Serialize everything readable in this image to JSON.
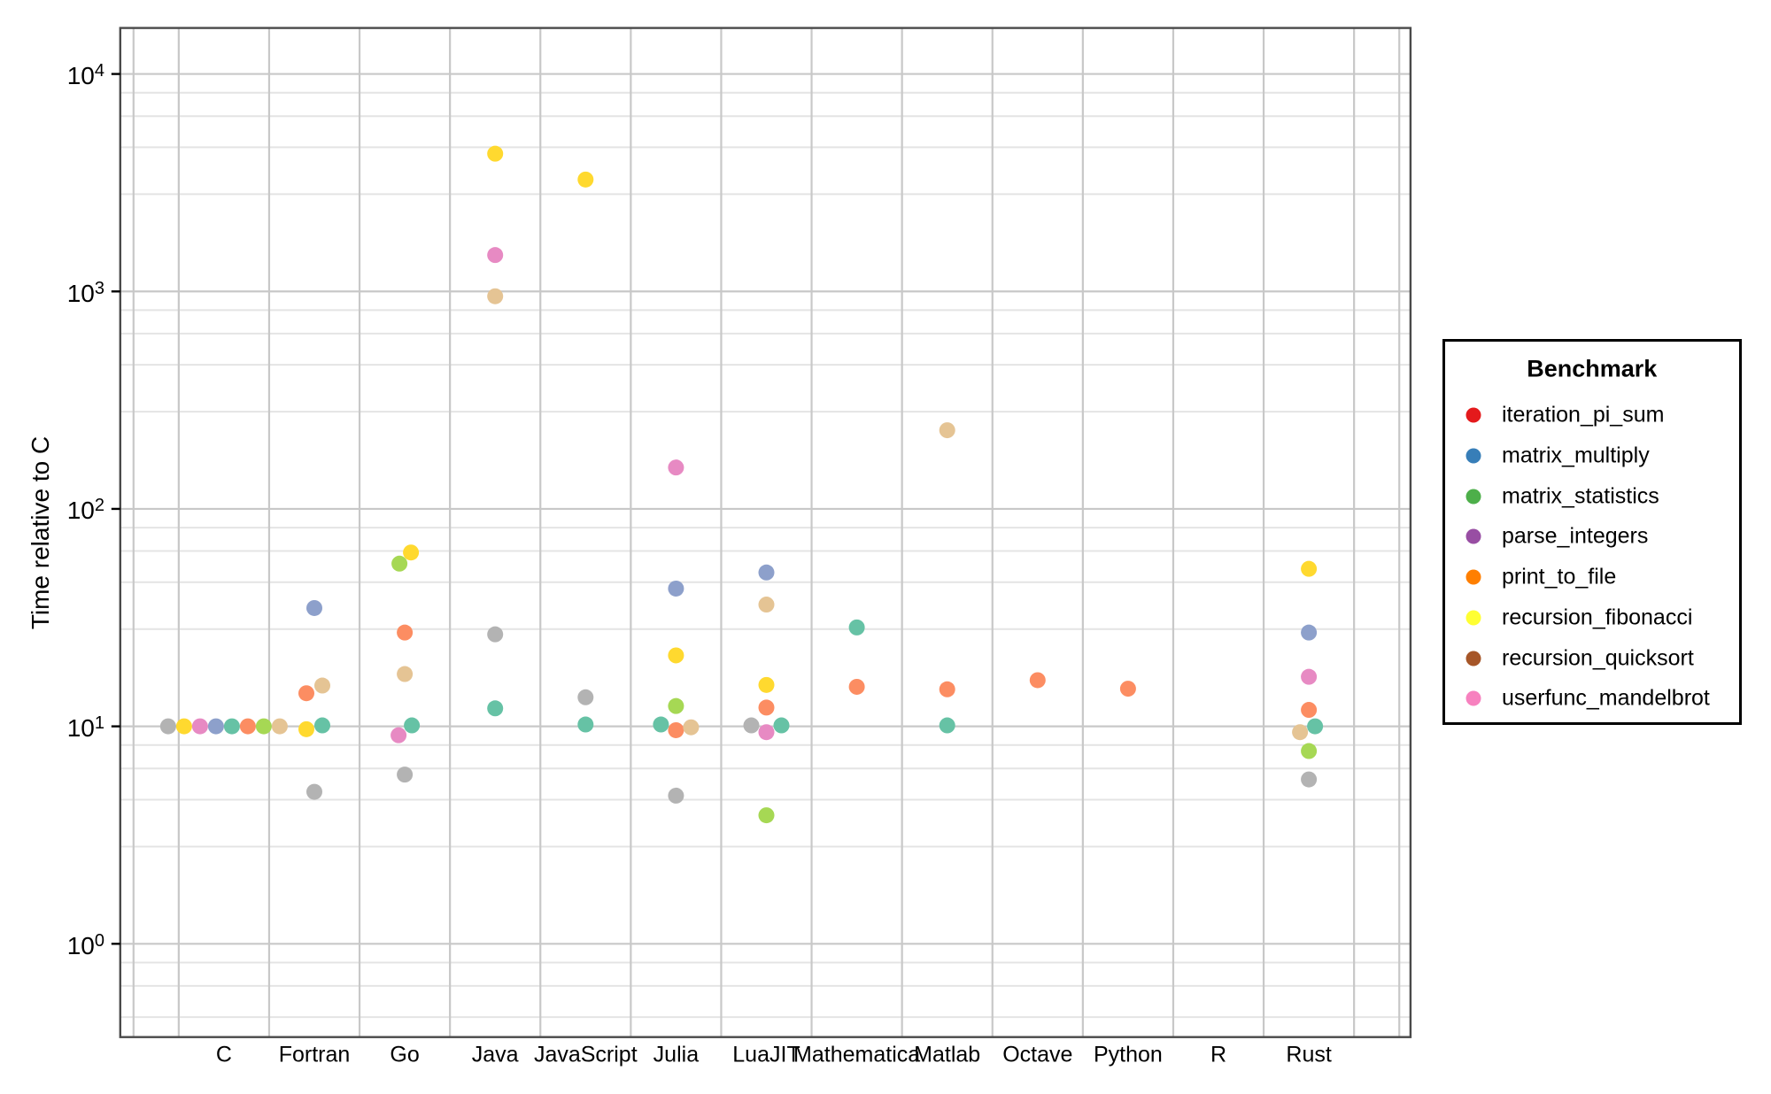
{
  "chart_data": {
    "type": "scatter",
    "subtype": "beeswarm",
    "title": "",
    "xlabel": "",
    "ylabel": "Time relative to C",
    "yscale": "log10",
    "ylim": [
      0.372,
      16277
    ],
    "yticks": [
      {
        "base": "10",
        "exp": "0",
        "value": 1
      },
      {
        "base": "10",
        "exp": "1",
        "value": 10
      },
      {
        "base": "10",
        "exp": "2",
        "value": 100
      },
      {
        "base": "10",
        "exp": "3",
        "value": 1000
      },
      {
        "base": "10",
        "exp": "4",
        "value": 10000
      }
    ],
    "minor_grid_mantissas": [
      2.8,
      4.6,
      6.4,
      8.2
    ],
    "grid": "on",
    "categories": [
      "C",
      "Fortran",
      "Go",
      "Java",
      "JavaScript",
      "Julia",
      "LuaJIT",
      "Mathematica",
      "Matlab",
      "Octave",
      "Python",
      "R",
      "Rust"
    ],
    "series": [
      {
        "name": "iteration_pi_sum",
        "color": "#66C2A5",
        "points": [
          {
            "category": "C",
            "value": 10.0,
            "dx": 9
          },
          {
            "category": "Fortran",
            "value": 10.1,
            "dx": 9
          },
          {
            "category": "Go",
            "value": 10.1,
            "dx": 8
          },
          {
            "category": "Java",
            "value": 12.1,
            "dx": 0
          },
          {
            "category": "JavaScript",
            "value": 10.2,
            "dx": 0
          },
          {
            "category": "Julia",
            "value": 10.2,
            "dx": -17
          },
          {
            "category": "LuaJIT",
            "value": 10.1,
            "dx": 17
          },
          {
            "category": "Mathematica",
            "value": 28.5,
            "dx": 0
          },
          {
            "category": "Matlab",
            "value": 10.1,
            "dx": 0
          },
          {
            "category": "Rust",
            "value": 10.0,
            "dx": 7
          }
        ]
      },
      {
        "name": "matrix_multiply",
        "color": "#FC8D62",
        "points": [
          {
            "category": "C",
            "value": 10.0,
            "dx": 27
          },
          {
            "category": "Fortran",
            "value": 14.2,
            "dx": -9
          },
          {
            "category": "Go",
            "value": 27.0,
            "dx": 0
          },
          {
            "category": "Julia",
            "value": 9.6,
            "dx": 0
          },
          {
            "category": "LuaJIT",
            "value": 12.2,
            "dx": 0
          },
          {
            "category": "Mathematica",
            "value": 15.2,
            "dx": 0
          },
          {
            "category": "Matlab",
            "value": 14.8,
            "dx": 0
          },
          {
            "category": "Octave",
            "value": 16.3,
            "dx": 0
          },
          {
            "category": "Python",
            "value": 14.9,
            "dx": 0
          },
          {
            "category": "Rust",
            "value": 11.9,
            "dx": 0
          }
        ]
      },
      {
        "name": "matrix_statistics",
        "color": "#8DA0CB",
        "points": [
          {
            "category": "C",
            "value": 10.0,
            "dx": -9
          },
          {
            "category": "Fortran",
            "value": 35.0,
            "dx": 0
          },
          {
            "category": "Julia",
            "value": 43.0,
            "dx": 0
          },
          {
            "category": "LuaJIT",
            "value": 51.0,
            "dx": 0
          },
          {
            "category": "Rust",
            "value": 27.0,
            "dx": 0
          }
        ]
      },
      {
        "name": "parse_integers",
        "color": "#E78AC3",
        "points": [
          {
            "category": "C",
            "value": 10.0,
            "dx": -27
          },
          {
            "category": "Go",
            "value": 9.1,
            "dx": -7
          },
          {
            "category": "Java",
            "value": 1470,
            "dx": 0
          },
          {
            "category": "Julia",
            "value": 155,
            "dx": 0
          },
          {
            "category": "LuaJIT",
            "value": 9.4,
            "dx": 0
          },
          {
            "category": "Rust",
            "value": 16.9,
            "dx": 0
          }
        ]
      },
      {
        "name": "print_to_file",
        "color": "#A6D854",
        "points": [
          {
            "category": "C",
            "value": 10.0,
            "dx": 45
          },
          {
            "category": "Go",
            "value": 56.0,
            "dx": -6
          },
          {
            "category": "Julia",
            "value": 12.4,
            "dx": 0
          },
          {
            "category": "LuaJIT",
            "value": 3.9,
            "dx": 0
          },
          {
            "category": "Rust",
            "value": 7.7,
            "dx": 0
          }
        ]
      },
      {
        "name": "recursion_fibonacci",
        "color": "#FFD92F",
        "points": [
          {
            "category": "C",
            "value": 10.0,
            "dx": -45
          },
          {
            "category": "Fortran",
            "value": 9.7,
            "dx": -9
          },
          {
            "category": "Go",
            "value": 63.0,
            "dx": 7
          },
          {
            "category": "Java",
            "value": 4300,
            "dx": 0
          },
          {
            "category": "JavaScript",
            "value": 3270,
            "dx": 0
          },
          {
            "category": "Julia",
            "value": 21.2,
            "dx": 0
          },
          {
            "category": "LuaJIT",
            "value": 15.5,
            "dx": 0
          },
          {
            "category": "Rust",
            "value": 53.0,
            "dx": 0
          }
        ]
      },
      {
        "name": "recursion_quicksort",
        "color": "#E5C494",
        "points": [
          {
            "category": "C",
            "value": 10.0,
            "dx": 63
          },
          {
            "category": "Fortran",
            "value": 15.4,
            "dx": 9
          },
          {
            "category": "Go",
            "value": 17.4,
            "dx": 0
          },
          {
            "category": "Java",
            "value": 950,
            "dx": 0
          },
          {
            "category": "Julia",
            "value": 9.9,
            "dx": 17
          },
          {
            "category": "LuaJIT",
            "value": 36.3,
            "dx": 0
          },
          {
            "category": "Matlab",
            "value": 230,
            "dx": 0
          },
          {
            "category": "Rust",
            "value": 9.4,
            "dx": -10
          }
        ]
      },
      {
        "name": "userfunc_mandelbrot",
        "color": "#B3B3B3",
        "points": [
          {
            "category": "C",
            "value": 10.0,
            "dx": -63
          },
          {
            "category": "Fortran",
            "value": 5.0,
            "dx": 0
          },
          {
            "category": "Go",
            "value": 6.0,
            "dx": 0
          },
          {
            "category": "Java",
            "value": 26.5,
            "dx": 0
          },
          {
            "category": "JavaScript",
            "value": 13.6,
            "dx": 0
          },
          {
            "category": "Julia",
            "value": 4.8,
            "dx": 0
          },
          {
            "category": "LuaJIT",
            "value": 10.1,
            "dx": -17
          },
          {
            "category": "Rust",
            "value": 5.7,
            "dx": 0
          }
        ]
      }
    ]
  },
  "legend": {
    "title": "Benchmark",
    "position": "right",
    "items": [
      {
        "label": "iteration_pi_sum",
        "color": "#E41A1C"
      },
      {
        "label": "matrix_multiply",
        "color": "#377EB8"
      },
      {
        "label": "matrix_statistics",
        "color": "#4DAF4A"
      },
      {
        "label": "parse_integers",
        "color": "#984EA3"
      },
      {
        "label": "print_to_file",
        "color": "#FF7F00"
      },
      {
        "label": "recursion_fibonacci",
        "color": "#FFFF33"
      },
      {
        "label": "recursion_quicksort",
        "color": "#A65628"
      },
      {
        "label": "userfunc_mandelbrot",
        "color": "#F781BF"
      }
    ]
  },
  "colors": {
    "background": "#FFFFFF",
    "panel_border": "#4A4A4A",
    "major_grid": "#C8C8C8",
    "minor_grid": "#E4E4E4",
    "tick": "#000000",
    "text": "#000000"
  }
}
